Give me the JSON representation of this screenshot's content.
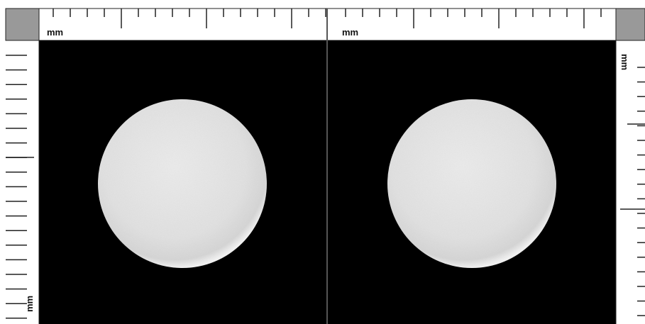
{
  "ruler_labels": [
    "mm",
    "mm",
    "mm",
    "mm"
  ]
}
